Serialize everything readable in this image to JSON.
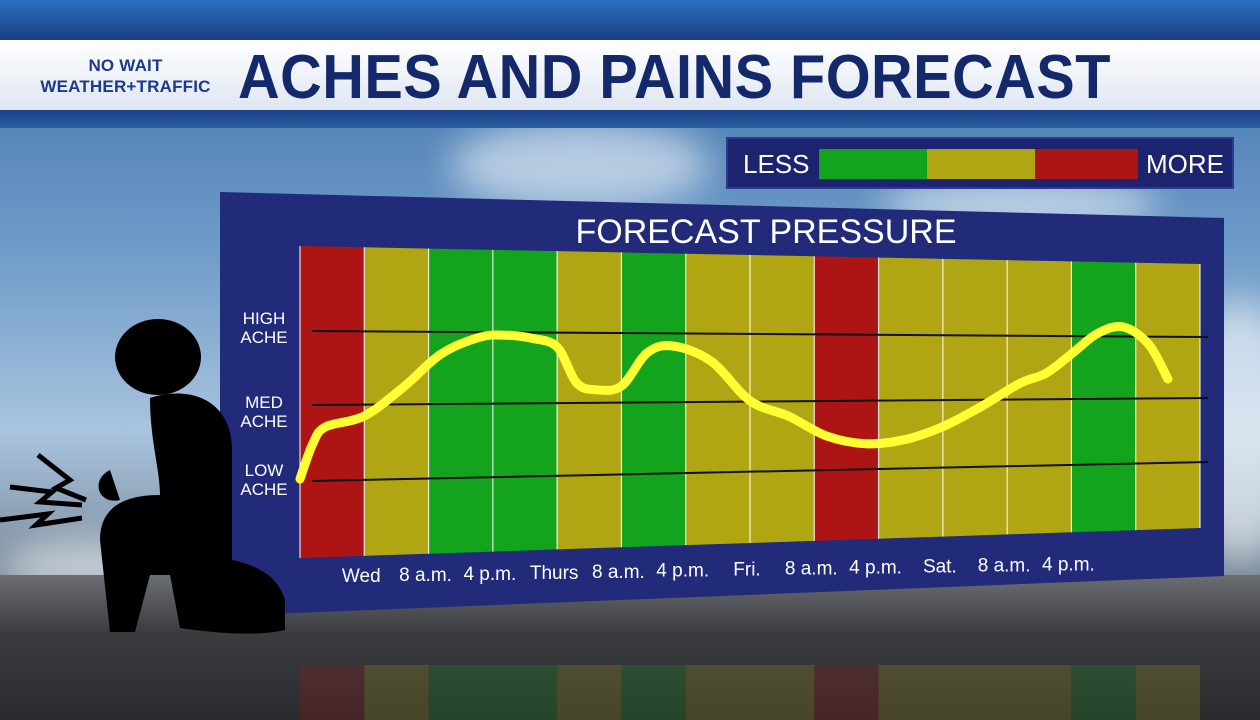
{
  "header": {
    "brand_line1": "NO WAIT",
    "brand_line2": "WEATHER+TRAFFIC",
    "title": "ACHES AND PAINS FORECAST"
  },
  "legend": {
    "less_label": "LESS",
    "more_label": "MORE",
    "colors": [
      "#13a31c",
      "#b0a614",
      "#ad1414"
    ]
  },
  "chart_data": {
    "type": "line",
    "title": "FORECAST PRESSURE",
    "y_levels": [
      {
        "label_line1": "HIGH",
        "label_line2": "ACHE"
      },
      {
        "label_line1": "MED",
        "label_line2": "ACHE"
      },
      {
        "label_line1": "LOW",
        "label_line2": "ACHE"
      }
    ],
    "x_tick_labels": [
      "Wed",
      "8 a.m.",
      "4 p.m.",
      "Thurs",
      "8 a.m.",
      "4 p.m.",
      "Fri.",
      "8 a.m.",
      "4 p.m.",
      "Sat.",
      "8 a.m.",
      "4 p.m."
    ],
    "band_levels": [
      "more",
      "mid",
      "less",
      "less",
      "mid",
      "less",
      "mid",
      "mid",
      "more",
      "mid",
      "mid",
      "mid",
      "less",
      "mid"
    ],
    "series": [
      {
        "color": "#ffff33",
        "x": [
          0,
          0.2,
          0.4,
          1.0,
          1.6,
          2.2,
          2.8,
          3.2,
          3.6,
          4.0,
          4.3,
          4.6,
          5.0,
          5.4,
          5.8,
          6.4,
          7.0,
          7.6,
          8.2,
          8.8,
          9.4,
          10.0,
          10.6,
          11.2,
          11.6,
          12.0,
          12.4,
          12.8,
          13.2,
          13.5
        ],
        "y": [
          0.03,
          0.5,
          0.72,
          0.86,
          1.24,
          1.7,
          1.93,
          1.96,
          1.92,
          1.8,
          1.3,
          1.2,
          1.25,
          1.72,
          1.82,
          1.6,
          1.03,
          0.8,
          0.5,
          0.38,
          0.43,
          0.62,
          0.92,
          1.27,
          1.42,
          1.72,
          2.04,
          2.15,
          1.88,
          1.33
        ]
      }
    ],
    "grid": true
  }
}
